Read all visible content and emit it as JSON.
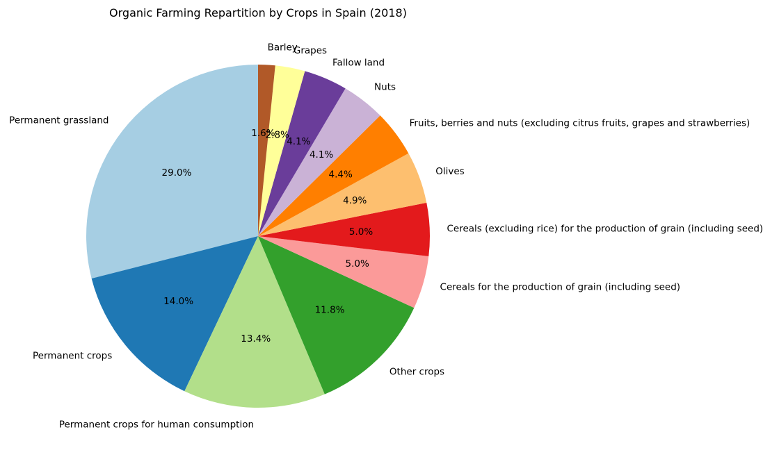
{
  "chart_data": {
    "type": "pie",
    "title": "Organic Farming Repartition by Crops in Spain (2018)",
    "start_angle": "top",
    "direction": "counterclockwise",
    "slices": [
      {
        "label": "Permanent grassland",
        "value": 29.0,
        "pct_label": "29.0%",
        "color": "#a6cee3"
      },
      {
        "label": "Permanent crops",
        "value": 14.0,
        "pct_label": "14.0%",
        "color": "#1f78b4"
      },
      {
        "label": "Permanent crops for human consumption",
        "value": 13.4,
        "pct_label": "13.4%",
        "color": "#b2df8a"
      },
      {
        "label": "Other crops",
        "value": 11.8,
        "pct_label": "11.8%",
        "color": "#33a02c"
      },
      {
        "label": "Cereals for the production of grain (including seed)",
        "value": 5.0,
        "pct_label": "5.0%",
        "color": "#fb9a99"
      },
      {
        "label": "Cereals (excluding rice) for the production of grain (including seed)",
        "value": 5.0,
        "pct_label": "5.0%",
        "color": "#e31a1c"
      },
      {
        "label": "Olives",
        "value": 4.9,
        "pct_label": "4.9%",
        "color": "#fdbf6f"
      },
      {
        "label": "Fruits, berries and nuts (excluding citrus fruits, grapes and strawberries)",
        "value": 4.4,
        "pct_label": "4.4%",
        "color": "#ff7f00"
      },
      {
        "label": "Nuts",
        "value": 4.1,
        "pct_label": "4.1%",
        "color": "#cab2d6"
      },
      {
        "label": "Fallow land",
        "value": 4.1,
        "pct_label": "4.1%",
        "color": "#6a3d9a"
      },
      {
        "label": "Grapes",
        "value": 2.8,
        "pct_label": "2.8%",
        "color": "#ffff99"
      },
      {
        "label": "Barley",
        "value": 1.6,
        "pct_label": "1.6%",
        "color": "#b15928"
      }
    ]
  }
}
